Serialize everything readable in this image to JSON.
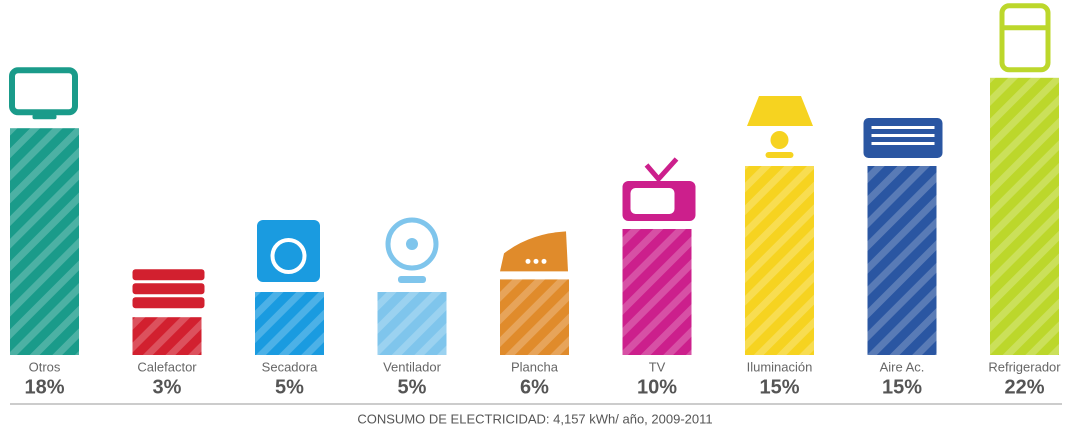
{
  "chart_data": {
    "type": "bar",
    "caption": "CONSUMO DE ELECTRICIDAD: 4,157 kWh/ año, 2009-2011",
    "categories": [
      "Otros",
      "Calefactor",
      "Secadora",
      "Ventilador",
      "Plancha",
      "TV",
      "Iluminación",
      "Aire Ac.",
      "Refrigerador"
    ],
    "values": [
      18,
      3,
      5,
      5,
      6,
      10,
      15,
      15,
      22
    ],
    "value_labels": [
      "18%",
      "3%",
      "5%",
      "5%",
      "6%",
      "10%",
      "15%",
      "15%",
      "22%"
    ],
    "colors": [
      "#1a9b8a",
      "#d2202f",
      "#1a9be0",
      "#7fc5ec",
      "#e08b2b",
      "#cc1f8c",
      "#f6d320",
      "#2a56a2",
      "#bcd72b"
    ]
  }
}
